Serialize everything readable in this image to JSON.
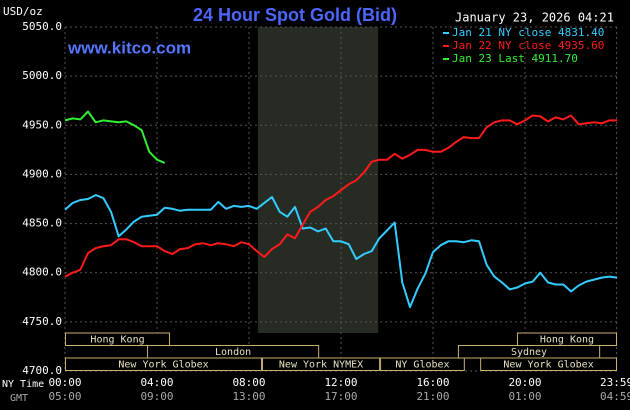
{
  "chart_data": {
    "type": "line",
    "title": "24 Hour Spot Gold (Bid)",
    "subtitle": "January 23, 2026 04:21",
    "watermark": "www.kitco.com",
    "y_label": "USD/oz",
    "x_label": "NY Time",
    "x2_label": "GMT",
    "xlim": [
      0,
      1440
    ],
    "ylim": [
      4700,
      5050
    ],
    "grid": true,
    "xticks": [
      {
        "value": 0,
        "label": "00:00"
      },
      {
        "value": 240,
        "label": "04:00"
      },
      {
        "value": 480,
        "label": "08:00"
      },
      {
        "value": 720,
        "label": "12:00"
      },
      {
        "value": 960,
        "label": "16:00"
      },
      {
        "value": 1200,
        "label": "20:00"
      },
      {
        "value": 1439,
        "label": "23:59"
      }
    ],
    "gmt_labels": [
      "05:00",
      "09:00",
      "13:00",
      "17:00",
      "21:00",
      "01:00",
      "04:59"
    ],
    "yticks": [
      {
        "value": 4700,
        "label": "4700.0"
      },
      {
        "value": 4750,
        "label": "4750.0"
      },
      {
        "value": 4800,
        "label": "4800.0"
      },
      {
        "value": 4850,
        "label": "4850.0"
      },
      {
        "value": 4900,
        "label": "4900.0"
      },
      {
        "value": 4950,
        "label": "4950.0"
      },
      {
        "value": 5000,
        "label": "5000.0"
      },
      {
        "value": 5050,
        "label": "5050.0"
      }
    ],
    "shaded_range": [
      503,
      817
    ],
    "session_rows": [
      [
        {
          "label": "Hong Kong",
          "start": 0,
          "end": 274
        },
        {
          "label": "Hong Kong",
          "start": 1179,
          "end": 1440
        }
      ],
      [
        {
          "label": "London",
          "start": 214,
          "end": 663
        },
        {
          "label": "Sydney",
          "start": 1025,
          "end": 1396
        }
      ],
      [
        {
          "label": "New York Globex",
          "start": 0,
          "end": 514
        },
        {
          "label": "New York NYMEX",
          "start": 514,
          "end": 822
        },
        {
          "label": "NY Globex",
          "start": 822,
          "end": 1043
        },
        {
          "label": "New York Globex",
          "start": 1083,
          "end": 1440
        }
      ]
    ],
    "x": [
      0,
      20,
      40,
      60,
      80,
      100,
      120,
      140,
      160,
      180,
      200,
      220,
      240,
      260,
      280,
      300,
      320,
      340,
      360,
      380,
      400,
      420,
      440,
      460,
      480,
      500,
      520,
      540,
      560,
      580,
      600,
      620,
      640,
      660,
      680,
      700,
      720,
      740,
      760,
      780,
      800,
      820,
      840,
      860,
      880,
      900,
      920,
      940,
      960,
      980,
      1000,
      1020,
      1040,
      1060,
      1080,
      1100,
      1120,
      1140,
      1160,
      1180,
      1200,
      1220,
      1240,
      1260,
      1280,
      1300,
      1320,
      1340,
      1360,
      1380,
      1400,
      1420,
      1440
    ],
    "series": [
      {
        "name": "Jan 21 NY close 4831.40",
        "color": "#33ccff",
        "values": [
          4864,
          4871,
          4874,
          4875,
          4879,
          4876,
          4862,
          4837,
          4844,
          4852,
          4857,
          4858,
          4859,
          4866,
          4865,
          4863,
          4864,
          4864,
          4864,
          4864,
          4872,
          4865,
          4868,
          4867,
          4868,
          4865,
          4871,
          4877,
          4862,
          4857,
          4867,
          4845,
          4846,
          4842,
          4845,
          4832,
          4832,
          4829,
          4814,
          4819,
          4822,
          4835,
          4843,
          4851,
          4790,
          4765,
          4784,
          4799,
          4821,
          4828,
          4832,
          4832,
          4831,
          4833,
          4832,
          4808,
          4796,
          4790,
          4783,
          4785,
          4789,
          4791,
          4800,
          4790,
          4788,
          4788,
          4781,
          4787,
          4791,
          4793,
          4795,
          4796,
          4795
        ]
      },
      {
        "name": "Jan 22 NY close 4935.60",
        "color": "#ff1a1a",
        "values": [
          4796,
          4800,
          4803,
          4820,
          4825,
          4827,
          4828,
          4834,
          4834,
          4831,
          4827,
          4827,
          4827,
          4822,
          4819,
          4824,
          4825,
          4829,
          4830,
          4828,
          4830,
          4829,
          4827,
          4831,
          4829,
          4822,
          4816,
          4824,
          4829,
          4839,
          4835,
          4849,
          4862,
          4867,
          4874,
          4878,
          4884,
          4890,
          4894,
          4902,
          4913,
          4915,
          4915,
          4921,
          4916,
          4920,
          4925,
          4925,
          4923,
          4923,
          4927,
          4933,
          4938,
          4937,
          4937,
          4948,
          4953,
          4955,
          4955,
          4951,
          4955,
          4960,
          4959,
          4954,
          4958,
          4956,
          4960,
          4951,
          4952,
          4953,
          4952,
          4955,
          4955
        ]
      },
      {
        "name": "Jan 23 Last 4911.70",
        "color": "#33ee33",
        "x": [
          0,
          20,
          40,
          60,
          80,
          100,
          120,
          140,
          160,
          180,
          200,
          220,
          240,
          260
        ],
        "values": [
          4955,
          4957,
          4956,
          4964,
          4953,
          4955,
          4954,
          4953,
          4954,
          4950,
          4945,
          4923,
          4915,
          4911.7
        ]
      }
    ]
  }
}
